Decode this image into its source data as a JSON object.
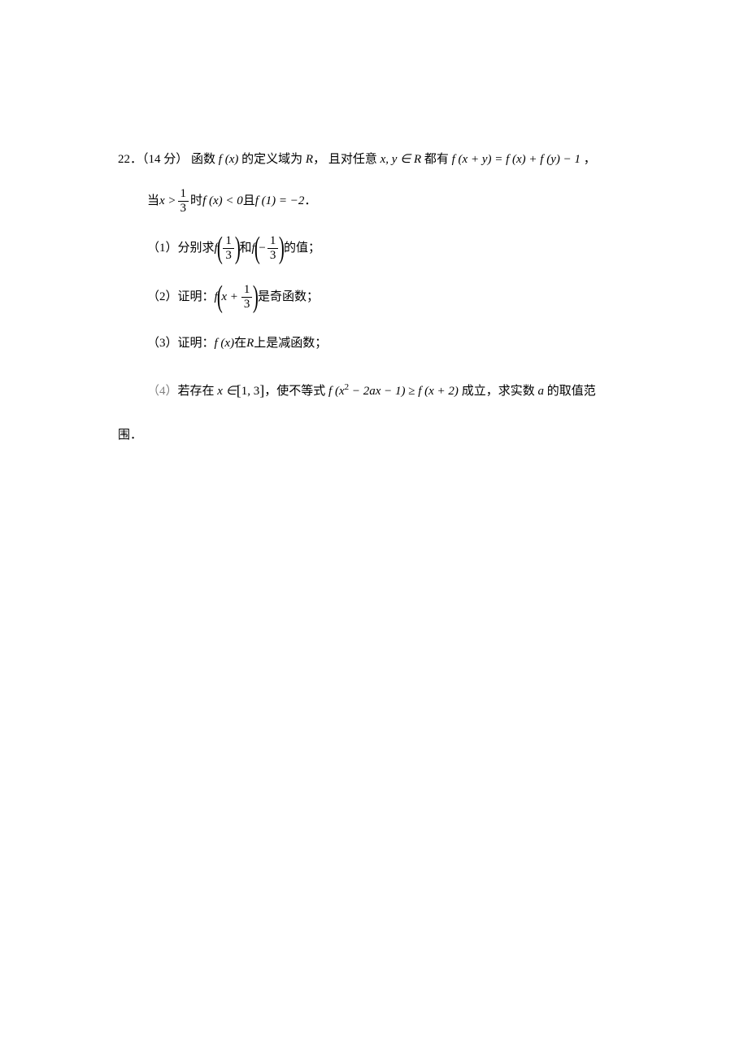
{
  "colors": {
    "text": "#000000",
    "background": "#ffffff",
    "part4_label": "#808080"
  },
  "typography": {
    "base_font_size": 15,
    "line_height": 2.2,
    "cn_font": "SimSun",
    "math_font": "Times New Roman"
  },
  "problem": {
    "number": "22．",
    "points": "（14 分）",
    "intro_1": " 函数 ",
    "fx": "f (x)",
    "intro_2": " 的定义域为 ",
    "domain_R": "R",
    "intro_3": "， 且对任意 ",
    "xy_in_R": "x, y ∈ R",
    "intro_4": " 都有 ",
    "functional_eq": "f (x + y) = f (x) + f (y) − 1",
    "comma_end": " ，",
    "cond_prefix": "当 ",
    "x_gt": "x >",
    "frac_1_3_num": "1",
    "frac_1_3_den": "3",
    "cond_mid": " 时 ",
    "fx_lt_0": "f (x) < 0",
    "and_char": "且",
    "f1_eq": "f (1) = −2",
    "period": " ．",
    "part1": {
      "label": "（1）分别求 ",
      "f_of": "f",
      "neg": "−",
      "and_word": " 和 ",
      "suffix": " 的值；"
    },
    "part2": {
      "label": "（2）证明：",
      "f_of": "f",
      "x_plus": "x +",
      "suffix": " 是奇函数；"
    },
    "part3": {
      "label": "（3）证明：",
      "fx": "f (x)",
      "text": " 在 ",
      "R": "R",
      "suffix": " 上是减函数；"
    },
    "part4": {
      "label": "（4）",
      "text1": "若存在 ",
      "x_in": "x ∈",
      "interval_l": "[",
      "interval_vals": "1, 3",
      "interval_r": "]",
      "text2": "，使不等式 ",
      "lhs": "f (x",
      "sq": "2",
      "lhs2": " − 2ax − 1) ≥ f (x + 2)",
      "text3": " 成立，求实数 ",
      "a": "a",
      "text4": " 的取值范",
      "final": "围．"
    }
  }
}
